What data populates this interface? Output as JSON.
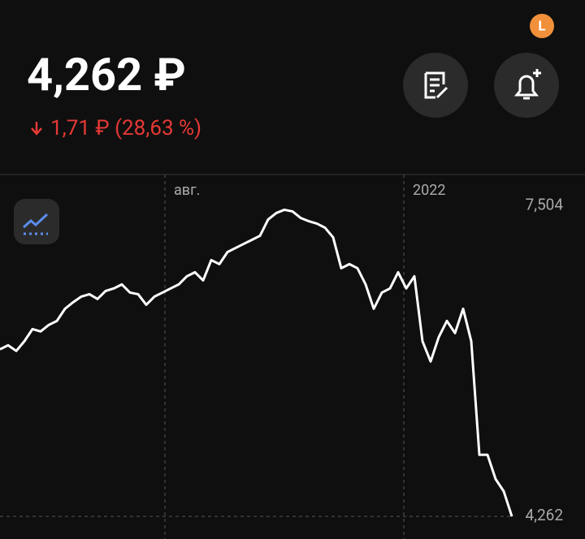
{
  "header": {
    "price": "4,262 ₽",
    "change": "1,71 ₽ (28,63 %)",
    "badge": "L"
  },
  "chart_data": {
    "type": "line",
    "x": [
      0,
      1,
      2,
      3,
      4,
      5,
      6,
      7,
      8,
      9,
      10,
      11,
      12,
      13,
      14,
      15,
      16,
      17,
      18,
      19,
      20,
      21,
      22,
      23,
      24,
      25,
      26,
      27,
      28,
      29,
      30,
      31,
      32,
      33,
      34,
      35,
      36,
      37,
      38,
      39,
      40,
      41,
      42,
      43,
      44,
      45,
      46,
      47,
      48,
      49,
      50,
      51,
      52,
      53,
      54,
      55,
      56,
      57,
      58,
      59,
      60,
      61,
      62,
      63
    ],
    "series": [
      {
        "color": "#ffffff",
        "values": [
          6.006,
          6.048,
          5.989,
          6.09,
          6.217,
          6.192,
          6.26,
          6.302,
          6.429,
          6.497,
          6.556,
          6.581,
          6.531,
          6.615,
          6.641,
          6.683,
          6.598,
          6.581,
          6.471,
          6.556,
          6.598,
          6.641,
          6.683,
          6.768,
          6.81,
          6.725,
          6.937,
          6.895,
          7.021,
          7.064,
          7.106,
          7.148,
          7.191,
          7.36,
          7.428,
          7.462,
          7.445,
          7.377,
          7.343,
          7.318,
          7.275,
          7.174,
          6.852,
          6.895,
          6.852,
          6.683,
          6.429,
          6.598,
          6.641,
          6.81,
          6.641,
          6.768,
          6.09,
          5.879,
          6.133,
          6.302,
          6.175,
          6.429,
          6.09,
          4.905,
          4.905,
          4.651,
          4.524,
          4.262
        ]
      }
    ],
    "xlim": [
      0,
      72
    ],
    "xticks": [
      {
        "value": 20.3,
        "label": "авг."
      },
      {
        "value": 49.7,
        "label": "2022"
      }
    ],
    "ylim": [
      4.06,
      7.83
    ],
    "yticks": [
      {
        "value": 7.504,
        "label": "7,504"
      },
      {
        "value": 4.262,
        "label": "4,262"
      }
    ]
  }
}
